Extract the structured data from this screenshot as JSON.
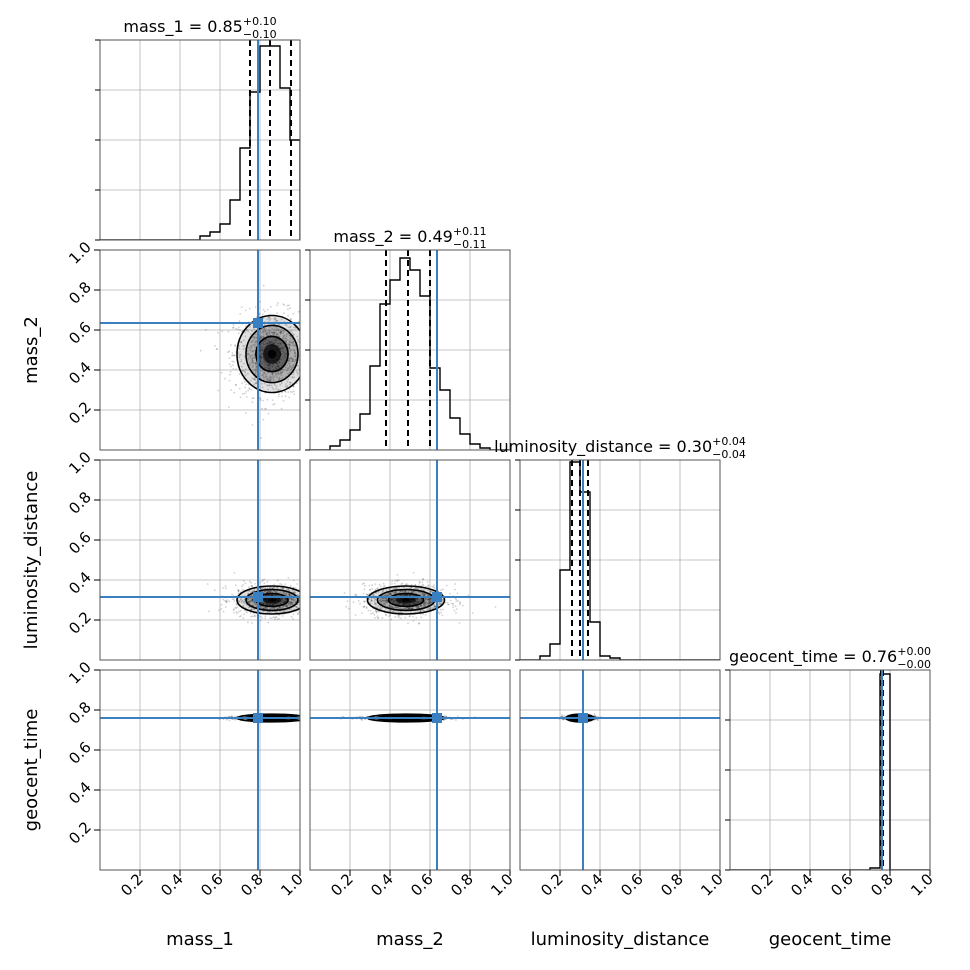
{
  "chart_data": {
    "type": "corner",
    "parameters": [
      "mass_1",
      "mass_2",
      "luminosity_distance",
      "geocent_time"
    ],
    "truth": [
      0.79,
      0.635,
      0.315,
      0.76
    ],
    "ticks": [
      0.2,
      0.4,
      0.6,
      0.8,
      1.0
    ],
    "tick_labels": [
      "0.2",
      "0.4",
      "0.6",
      "0.8",
      "1.0"
    ],
    "range": [
      0,
      1
    ],
    "grid": true,
    "marginals": [
      {
        "parameter": "mass_1",
        "title_main": "mass_1 = 0.85",
        "title_plus": "+0.10",
        "title_minus": "−0.10",
        "quantiles": [
          0.75,
          0.85,
          0.955
        ],
        "bin_edges": [
          0.5,
          0.55,
          0.6,
          0.65,
          0.7,
          0.75,
          0.8,
          0.85,
          0.9,
          0.95,
          1.0
        ],
        "counts": [
          0.02,
          0.04,
          0.08,
          0.2,
          0.46,
          0.74,
          0.97,
          0.97,
          0.76,
          0.5
        ]
      },
      {
        "parameter": "mass_2",
        "title_main": "mass_2 = 0.49",
        "title_plus": "+0.11",
        "title_minus": "−0.11",
        "quantiles": [
          0.38,
          0.49,
          0.6
        ],
        "bin_edges": [
          0.1,
          0.15,
          0.2,
          0.25,
          0.3,
          0.35,
          0.4,
          0.45,
          0.5,
          0.55,
          0.6,
          0.65,
          0.7,
          0.75,
          0.8,
          0.85,
          0.9
        ],
        "counts": [
          0.02,
          0.05,
          0.1,
          0.18,
          0.42,
          0.73,
          0.85,
          0.96,
          0.9,
          0.77,
          0.41,
          0.3,
          0.16,
          0.08,
          0.03,
          0.01
        ]
      },
      {
        "parameter": "luminosity_distance",
        "title_main": "luminosity_distance = 0.30",
        "title_plus": "+0.04",
        "title_minus": "−0.04",
        "quantiles": [
          0.26,
          0.3,
          0.34
        ],
        "bin_edges": [
          0.1,
          0.15,
          0.2,
          0.25,
          0.3,
          0.35,
          0.4,
          0.45,
          0.5
        ],
        "counts": [
          0.02,
          0.08,
          0.45,
          0.99,
          0.84,
          0.19,
          0.02,
          0.01
        ]
      },
      {
        "parameter": "geocent_time",
        "title_main": "geocent_time = 0.76",
        "title_plus": "+0.00",
        "title_minus": "−0.00",
        "quantiles": [
          0.755,
          0.76,
          0.765
        ],
        "bin_edges": [
          0.7,
          0.75,
          0.8
        ],
        "counts": [
          0.01,
          0.98
        ]
      }
    ],
    "joints": [
      {
        "x": "mass_1",
        "y": "mass_2",
        "center": [
          0.86,
          0.48
        ],
        "spread": [
          0.1,
          0.11
        ]
      },
      {
        "x": "mass_1",
        "y": "luminosity_distance",
        "center": [
          0.86,
          0.3
        ],
        "spread": [
          0.1,
          0.04
        ]
      },
      {
        "x": "mass_2",
        "y": "luminosity_distance",
        "center": [
          0.48,
          0.3
        ],
        "spread": [
          0.11,
          0.04
        ]
      },
      {
        "x": "mass_1",
        "y": "geocent_time",
        "center": [
          0.86,
          0.76
        ],
        "spread": [
          0.1,
          0.005
        ]
      },
      {
        "x": "mass_2",
        "y": "geocent_time",
        "center": [
          0.48,
          0.76
        ],
        "spread": [
          0.11,
          0.005
        ]
      },
      {
        "x": "luminosity_distance",
        "y": "geocent_time",
        "center": [
          0.3,
          0.76
        ],
        "spread": [
          0.04,
          0.005
        ]
      }
    ],
    "colors": {
      "truth": "#3a7fbf",
      "hist": "#000000",
      "grid": "#b0b0b0",
      "density": "#000000"
    }
  }
}
